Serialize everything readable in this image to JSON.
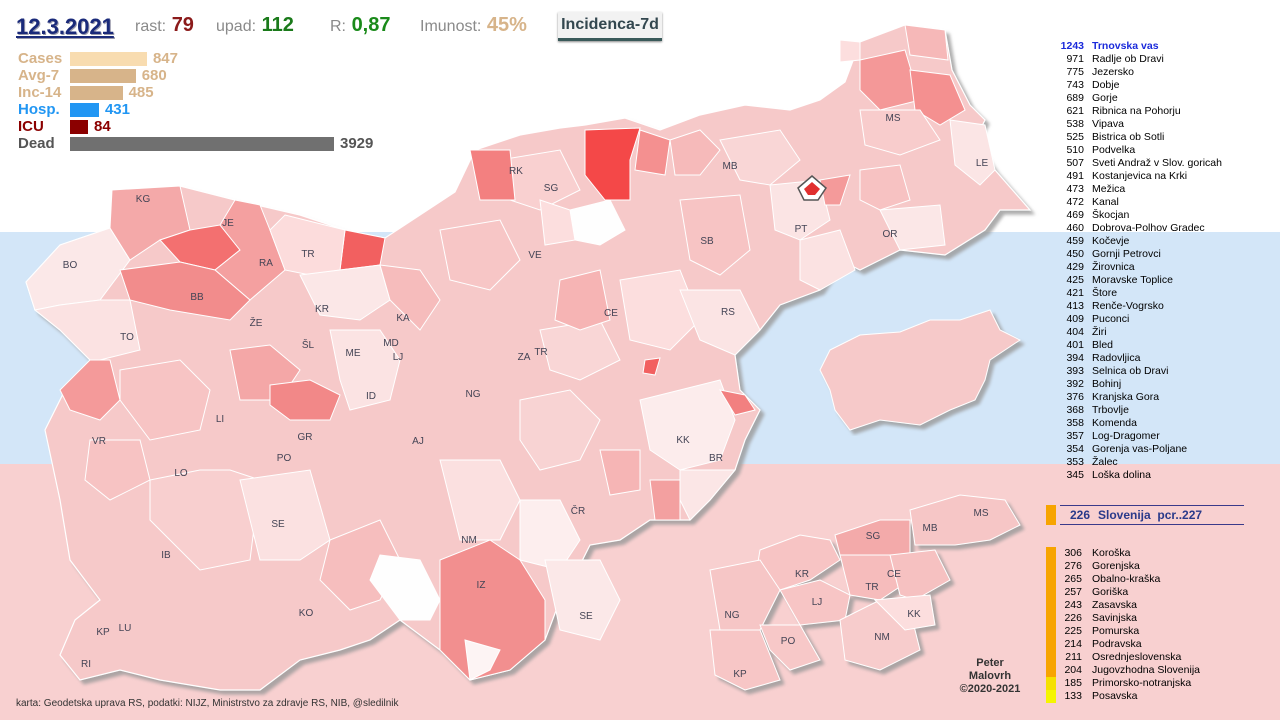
{
  "header": {
    "date": "12.3.2021",
    "rast_label": "rast:",
    "rast_value": "79",
    "upad_label": "upad:",
    "upad_value": "112",
    "r_label": "R:",
    "r_value": "0,87",
    "imunost_label": "Imunost:",
    "imunost_value": "45%",
    "mode": "Incidenca-7d"
  },
  "stats": [
    {
      "name": "Cases",
      "value": "847",
      "fraction": 0.2157,
      "color": "#f8dcb0"
    },
    {
      "name": "Avg-7",
      "value": "680",
      "fraction": 0.1731,
      "color": "#d7b48a"
    },
    {
      "name": "Inc-14",
      "value": "485",
      "fraction": 0.1235,
      "color": "#d7b48a"
    },
    {
      "name": "Hosp.",
      "value": "431",
      "fraction": 0.1097,
      "color": "#2196f3"
    },
    {
      "name": "ICU",
      "value": "84",
      "fraction": 0.0214,
      "color": "#8b0000"
    },
    {
      "name": "Dead",
      "value": "3929",
      "fraction": 1.0,
      "color": "#707070"
    }
  ],
  "map_labels": [
    "KG",
    "JE",
    "BO",
    "RA",
    "TR",
    "BB",
    "KR",
    "ŽE",
    "TO",
    "KA",
    "ŠL",
    "ME",
    "MD",
    "LJ",
    "ID",
    "LI",
    "NG",
    "VR",
    "GR",
    "AJ",
    "LO",
    "PO",
    "SE",
    "IB",
    "KO",
    "IZ",
    "KP",
    "LU",
    "RI",
    "NM",
    "ČR",
    "SE",
    "KK",
    "BR",
    "ZA",
    "TR",
    "CE",
    "RS",
    "VE",
    "SB",
    "SG",
    "RK",
    "MB",
    "PT",
    "OR",
    "MS",
    "LE"
  ],
  "inset_labels": [
    "MS",
    "SG",
    "MB",
    "KR",
    "CE",
    "TR",
    "LJ",
    "NG",
    "PO",
    "NM",
    "KK",
    "KP"
  ],
  "rankings": [
    {
      "n": "1243",
      "name": "Trnovska vas"
    },
    {
      "n": "971",
      "name": "Radlje ob Dravi"
    },
    {
      "n": "775",
      "name": "Jezersko"
    },
    {
      "n": "743",
      "name": "Dobje"
    },
    {
      "n": "689",
      "name": "Gorje"
    },
    {
      "n": "621",
      "name": "Ribnica na Pohorju"
    },
    {
      "n": "538",
      "name": "Vipava"
    },
    {
      "n": "525",
      "name": "Bistrica ob Sotli"
    },
    {
      "n": "510",
      "name": "Podvelka"
    },
    {
      "n": "507",
      "name": "Sveti Andraž v Slov. goricah"
    },
    {
      "n": "491",
      "name": "Kostanjevica na Krki"
    },
    {
      "n": "473",
      "name": "Mežica"
    },
    {
      "n": "472",
      "name": "Kanal"
    },
    {
      "n": "469",
      "name": "Škocjan"
    },
    {
      "n": "460",
      "name": "Dobrova-Polhov Gradec"
    },
    {
      "n": "459",
      "name": "Kočevje"
    },
    {
      "n": "450",
      "name": "Gornji Petrovci"
    },
    {
      "n": "429",
      "name": "Žirovnica"
    },
    {
      "n": "425",
      "name": "Moravske Toplice"
    },
    {
      "n": "421",
      "name": "Štore"
    },
    {
      "n": "413",
      "name": "Renče-Vogrsko"
    },
    {
      "n": "409",
      "name": "Puconci"
    },
    {
      "n": "404",
      "name": "Žiri"
    },
    {
      "n": "401",
      "name": "Bled"
    },
    {
      "n": "394",
      "name": "Radovljica"
    },
    {
      "n": "393",
      "name": "Selnica ob Dravi"
    },
    {
      "n": "392",
      "name": "Bohinj"
    },
    {
      "n": "376",
      "name": "Kranjska Gora"
    },
    {
      "n": "368",
      "name": "Trbovlje"
    },
    {
      "n": "358",
      "name": "Komenda"
    },
    {
      "n": "357",
      "name": "Log-Dragomer"
    },
    {
      "n": "354",
      "name": "Gorenja vas-Poljane"
    },
    {
      "n": "353",
      "name": "Žalec"
    },
    {
      "n": "345",
      "name": "Loška dolina"
    }
  ],
  "slovenia": {
    "n": "226",
    "label": "Slovenija",
    "pcr": "pcr..227"
  },
  "regions": [
    {
      "n": "306",
      "name": "Koroška",
      "color": "#f7a400"
    },
    {
      "n": "276",
      "name": "Gorenjska",
      "color": "#f7a400"
    },
    {
      "n": "265",
      "name": "Obalno-kraška",
      "color": "#f7a400"
    },
    {
      "n": "257",
      "name": "Goriška",
      "color": "#f7a400"
    },
    {
      "n": "243",
      "name": "Zasavska",
      "color": "#f7a400"
    },
    {
      "n": "226",
      "name": "Savinjska",
      "color": "#f7a400"
    },
    {
      "n": "225",
      "name": "Pomurska",
      "color": "#f7a400"
    },
    {
      "n": "214",
      "name": "Podravska",
      "color": "#f7a400"
    },
    {
      "n": "211",
      "name": "Osrednjeslovenska",
      "color": "#f7a400"
    },
    {
      "n": "204",
      "name": "Jugovzhodna Slovenija",
      "color": "#f7a400"
    },
    {
      "n": "185",
      "name": "Primorsko-notranjska",
      "color": "#f5e000"
    },
    {
      "n": "133",
      "name": "Posavska",
      "color": "#f5f500"
    }
  ],
  "footer": {
    "source": "karta: Geodetska uprava RS,  podatki: NIJZ, Ministrstvo za zdravje RS, NIB, @sledilnik",
    "author_line1": "Peter",
    "author_line2": "Malovrh",
    "author_line3": "©2020-2021"
  }
}
